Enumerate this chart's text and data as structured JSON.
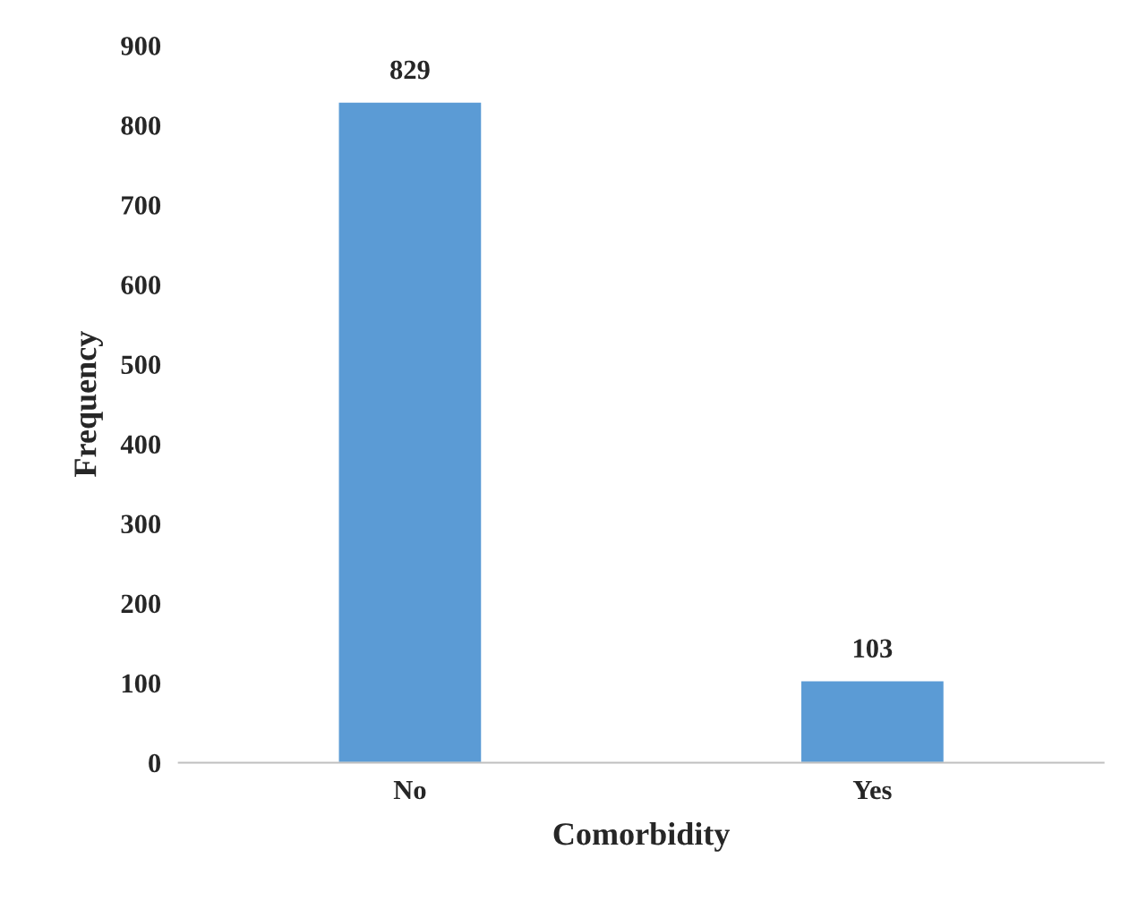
{
  "chart_data": {
    "type": "bar",
    "xlabel": "Comorbidity",
    "ylabel": "Frequency",
    "categories": [
      "No",
      "Yes"
    ],
    "values": [
      829,
      103
    ],
    "color": "#5b9bd5",
    "ylim": [
      0,
      900
    ],
    "yticks": [
      0,
      100,
      200,
      300,
      400,
      500,
      600,
      700,
      800,
      900
    ],
    "data_labels": true,
    "grid": false,
    "legend": false
  }
}
